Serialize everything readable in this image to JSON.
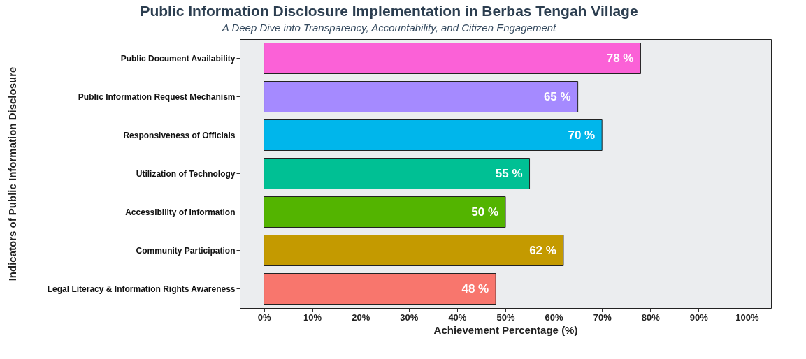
{
  "chart_data": {
    "type": "bar",
    "orientation": "horizontal",
    "title": "Public Information Disclosure Implementation in Berbas Tengah Village",
    "subtitle": "A Deep Dive into Transparency, Accountability, and Citizen Engagement",
    "xlabel": "Achievement Percentage (%)",
    "ylabel": "Indicators of Public Information Disclosure",
    "categories": [
      "Public Document Availability",
      "Public Information Request Mechanism",
      "Responsiveness of Officials",
      "Utilization of Technology",
      "Accessibility of Information",
      "Community Participation",
      "Legal Literacy & Information Rights Awareness"
    ],
    "values": [
      78,
      65,
      70,
      55,
      50,
      62,
      48
    ],
    "colors": [
      "#fb61d7",
      "#a58aff",
      "#00b6eb",
      "#00c094",
      "#53b400",
      "#c49a00",
      "#f8766d"
    ],
    "value_labels": [
      "78 %",
      "65 %",
      "70 %",
      "55 %",
      "50 %",
      "62 %",
      "48 %"
    ],
    "xlim": [
      -5,
      105
    ],
    "xticks": [
      {
        "value": 0,
        "label": "0%"
      },
      {
        "value": 10,
        "label": "10%"
      },
      {
        "value": 20,
        "label": "20%"
      },
      {
        "value": 30,
        "label": "30%"
      },
      {
        "value": 40,
        "label": "40%"
      },
      {
        "value": 50,
        "label": "50%"
      },
      {
        "value": 60,
        "label": "60%"
      },
      {
        "value": 70,
        "label": "70%"
      },
      {
        "value": 80,
        "label": "80%"
      },
      {
        "value": 90,
        "label": "90%"
      },
      {
        "value": 100,
        "label": "100%"
      }
    ],
    "grid": false,
    "legend": false
  }
}
